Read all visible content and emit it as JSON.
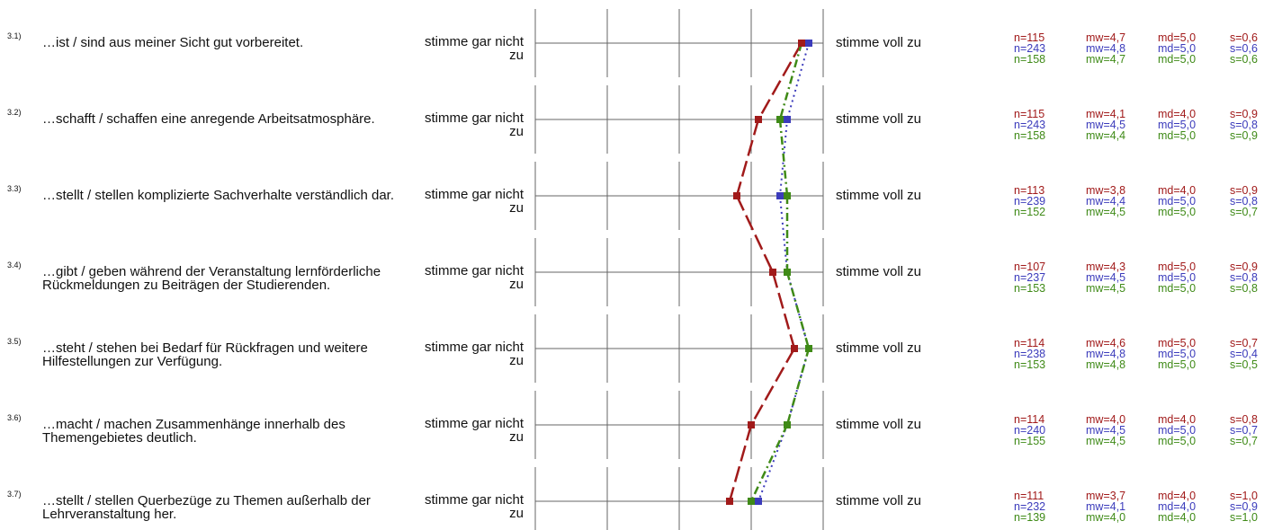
{
  "scale": {
    "min": 1,
    "max": 5
  },
  "colors": {
    "series_1": "#a11a1a",
    "series_2": "#3b3bbb",
    "series_3": "#3f8a17"
  },
  "rows": [
    {
      "num": "3.1)",
      "text": "…ist / sind aus meiner Sicht gut vorbereitet.",
      "left": "stimme gar nicht zu",
      "right": "stimme voll zu",
      "stats": [
        {
          "n": "n=115",
          "mw": "mw=4,7",
          "md": "md=5,0",
          "s": "s=0,6"
        },
        {
          "n": "n=243",
          "mw": "mw=4,8",
          "md": "md=5,0",
          "s": "s=0,6"
        },
        {
          "n": "n=158",
          "mw": "mw=4,7",
          "md": "md=5,0",
          "s": "s=0,6"
        }
      ]
    },
    {
      "num": "3.2)",
      "text": "…schafft / schaffen eine anregende Arbeitsatmosphäre.",
      "left": "stimme gar nicht zu",
      "right": "stimme voll zu",
      "stats": [
        {
          "n": "n=115",
          "mw": "mw=4,1",
          "md": "md=4,0",
          "s": "s=0,9"
        },
        {
          "n": "n=243",
          "mw": "mw=4,5",
          "md": "md=5,0",
          "s": "s=0,8"
        },
        {
          "n": "n=158",
          "mw": "mw=4,4",
          "md": "md=5,0",
          "s": "s=0,9"
        }
      ]
    },
    {
      "num": "3.3)",
      "text": "…stellt / stellen komplizierte Sachverhalte verständlich dar.",
      "left": "stimme gar nicht zu",
      "right": "stimme voll zu",
      "stats": [
        {
          "n": "n=113",
          "mw": "mw=3,8",
          "md": "md=4,0",
          "s": "s=0,9"
        },
        {
          "n": "n=239",
          "mw": "mw=4,4",
          "md": "md=5,0",
          "s": "s=0,8"
        },
        {
          "n": "n=152",
          "mw": "mw=4,5",
          "md": "md=5,0",
          "s": "s=0,7"
        }
      ]
    },
    {
      "num": "3.4)",
      "text": "…gibt / geben während der Veranstaltung lernförderliche Rückmeldungen zu Beiträgen der Studierenden.",
      "left": "stimme gar nicht zu",
      "right": "stimme voll zu",
      "stats": [
        {
          "n": "n=107",
          "mw": "mw=4,3",
          "md": "md=5,0",
          "s": "s=0,9"
        },
        {
          "n": "n=237",
          "mw": "mw=4,5",
          "md": "md=5,0",
          "s": "s=0,8"
        },
        {
          "n": "n=153",
          "mw": "mw=4,5",
          "md": "md=5,0",
          "s": "s=0,8"
        }
      ]
    },
    {
      "num": "3.5)",
      "text": "…steht / stehen bei Bedarf für Rückfragen und weitere Hilfestellungen zur Verfügung.",
      "left": "stimme gar nicht zu",
      "right": "stimme voll zu",
      "stats": [
        {
          "n": "n=114",
          "mw": "mw=4,6",
          "md": "md=5,0",
          "s": "s=0,7"
        },
        {
          "n": "n=238",
          "mw": "mw=4,8",
          "md": "md=5,0",
          "s": "s=0,4"
        },
        {
          "n": "n=153",
          "mw": "mw=4,8",
          "md": "md=5,0",
          "s": "s=0,5"
        }
      ]
    },
    {
      "num": "3.6)",
      "text": "…macht / machen Zusammenhänge innerhalb des Themengebietes deutlich.",
      "left": "stimme gar nicht zu",
      "right": "stimme voll zu",
      "stats": [
        {
          "n": "n=114",
          "mw": "mw=4,0",
          "md": "md=4,0",
          "s": "s=0,8"
        },
        {
          "n": "n=240",
          "mw": "mw=4,5",
          "md": "md=5,0",
          "s": "s=0,7"
        },
        {
          "n": "n=155",
          "mw": "mw=4,5",
          "md": "md=5,0",
          "s": "s=0,7"
        }
      ]
    },
    {
      "num": "3.7)",
      "text": "…stellt / stellen Querbezüge zu Themen außerhalb der Lehrveranstaltung her.",
      "left": "stimme gar nicht zu",
      "right": "stimme voll zu",
      "stats": [
        {
          "n": "n=111",
          "mw": "mw=3,7",
          "md": "md=4,0",
          "s": "s=1,0"
        },
        {
          "n": "n=232",
          "mw": "mw=4,1",
          "md": "md=4,0",
          "s": "s=0,9"
        },
        {
          "n": "n=139",
          "mw": "mw=4,0",
          "md": "md=4,0",
          "s": "s=1,0"
        }
      ]
    }
  ],
  "chart_data": {
    "type": "line",
    "categories": [
      "3.1)",
      "3.2)",
      "3.3)",
      "3.4)",
      "3.5)",
      "3.6)",
      "3.7)"
    ],
    "xlim": [
      1,
      5
    ],
    "series": [
      {
        "values": [
          4.7,
          4.1,
          3.8,
          4.3,
          4.6,
          4.0,
          3.7
        ]
      },
      {
        "values": [
          4.8,
          4.5,
          4.4,
          4.5,
          4.8,
          4.5,
          4.1
        ]
      },
      {
        "values": [
          4.7,
          4.4,
          4.5,
          4.5,
          4.8,
          4.5,
          4.0
        ]
      }
    ]
  }
}
